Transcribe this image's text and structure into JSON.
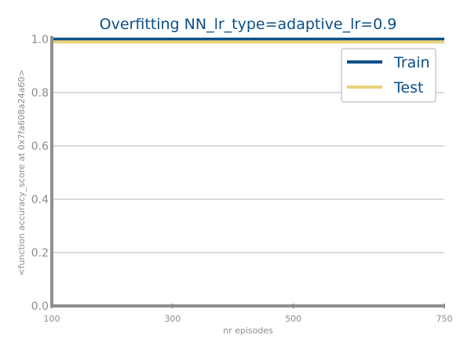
{
  "chart_data": {
    "type": "line",
    "title": "Overfitting NN_lr_type=adaptive_lr=0.9",
    "xlabel": "nr episodes",
    "ylabel": "<function accuracy_score at 0x7fa608a24a60>",
    "x": [
      100,
      300,
      500,
      750
    ],
    "xticks": [
      "100",
      "300",
      "500",
      "750"
    ],
    "xlim": [
      100,
      750
    ],
    "ylim": [
      0.0,
      1.0
    ],
    "yticks": [
      "0.0",
      "0.2",
      "0.4",
      "0.6",
      "0.8",
      "1.0"
    ],
    "grid": "horizontal",
    "legend_position": "top-right",
    "series": [
      {
        "name": "Train",
        "color": "#0b4f8a",
        "values": [
          1.0,
          1.0,
          1.0,
          1.0
        ]
      },
      {
        "name": "Test",
        "color": "#e8d27a",
        "values": [
          0.99,
          0.99,
          0.99,
          0.99
        ]
      }
    ]
  }
}
